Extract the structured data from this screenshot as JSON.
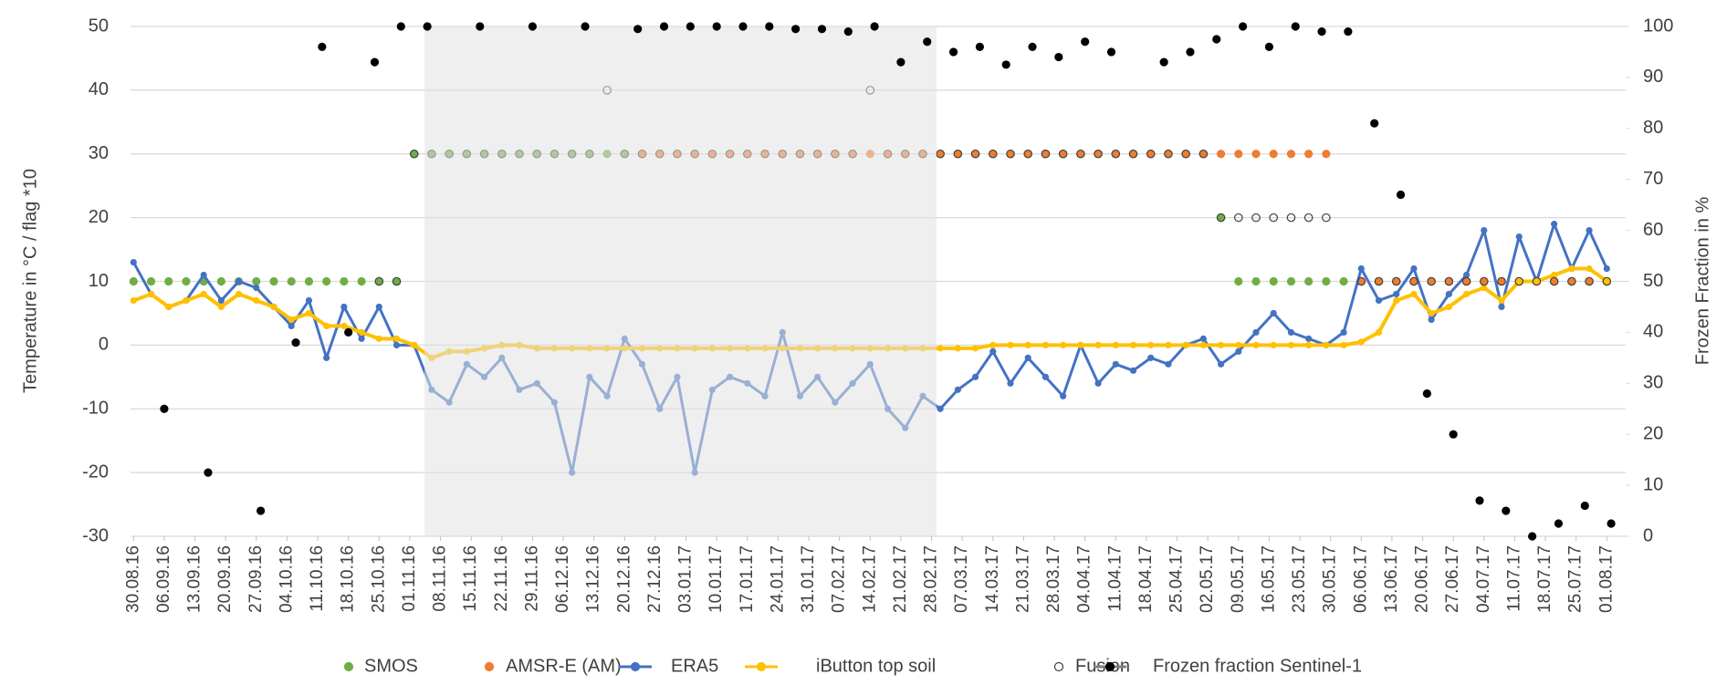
{
  "chart_data": {
    "type": "line",
    "y_label": "Temperature in °C  /  flag *10",
    "y2_label": "Frozen Fraction in %",
    "ylim": [
      -30,
      50
    ],
    "yticks": [
      -30,
      -20,
      -10,
      0,
      10,
      20,
      30,
      40,
      50
    ],
    "y2lim": [
      0,
      100
    ],
    "y2ticks": [
      0,
      10,
      20,
      30,
      40,
      50,
      60,
      70,
      80,
      90,
      100
    ],
    "grid": true,
    "legend": "bottom",
    "xticks": [
      "30.08.16",
      "06.09.16",
      "13.09.16",
      "20.09.16",
      "27.09.16",
      "04.10.16",
      "11.10.16",
      "18.10.16",
      "25.10.16",
      "01.11.16",
      "08.11.16",
      "15.11.16",
      "22.11.16",
      "29.11.16",
      "06.12.16",
      "13.12.16",
      "20.12.16",
      "27.12.16",
      "03.01.17",
      "10.01.17",
      "17.01.17",
      "24.01.17",
      "31.01.17",
      "07.02.17",
      "14.02.17",
      "21.02.17",
      "28.02.17",
      "07.03.17",
      "14.03.17",
      "21.03.17",
      "28.03.17",
      "04.04.17",
      "11.04.17",
      "18.04.17",
      "25.04.17",
      "02.05.17",
      "09.05.17",
      "16.05.17",
      "23.05.17",
      "30.05.17",
      "06.06.17",
      "13.06.17",
      "20.06.17",
      "27.06.17",
      "04.07.17",
      "11.07.17",
      "18.07.17",
      "25.07.17",
      "01.08.17"
    ],
    "x": [
      "30.08.16",
      "03.09.16",
      "07.09.16",
      "11.09.16",
      "15.09.16",
      "19.09.16",
      "23.09.16",
      "27.09.16",
      "01.10.16",
      "05.10.16",
      "09.10.16",
      "13.10.16",
      "17.10.16",
      "21.10.16",
      "25.10.16",
      "29.10.16",
      "02.11.16",
      "06.11.16",
      "10.11.16",
      "14.11.16",
      "18.11.16",
      "22.11.16",
      "26.11.16",
      "30.11.16",
      "04.12.16",
      "08.12.16",
      "12.12.16",
      "16.12.16",
      "20.12.16",
      "24.12.16",
      "28.12.16",
      "01.01.17",
      "05.01.17",
      "09.01.17",
      "13.01.17",
      "17.01.17",
      "21.01.17",
      "25.01.17",
      "29.01.17",
      "02.02.17",
      "06.02.17",
      "10.02.17",
      "14.02.17",
      "18.02.17",
      "22.02.17",
      "26.02.17",
      "02.03.17",
      "06.03.17",
      "10.03.17",
      "14.03.17",
      "18.03.17",
      "22.03.17",
      "26.03.17",
      "30.03.17",
      "03.04.17",
      "07.04.17",
      "11.04.17",
      "15.04.17",
      "19.04.17",
      "23.04.17",
      "27.04.17",
      "01.05.17",
      "05.05.17",
      "09.05.17",
      "13.05.17",
      "17.05.17",
      "21.05.17",
      "25.05.17",
      "29.05.17",
      "02.06.17",
      "06.06.17",
      "10.06.17",
      "14.06.17",
      "18.06.17",
      "22.06.17",
      "26.06.17",
      "30.06.17",
      "04.07.17",
      "08.07.17",
      "12.07.17",
      "16.07.17",
      "20.07.17",
      "24.07.17",
      "28.07.17",
      "01.08.17"
    ],
    "series": [
      {
        "name": "SMOS",
        "color": "#70ad47",
        "line": false,
        "values": [
          10,
          10,
          10,
          10,
          10,
          10,
          10,
          10,
          10,
          10,
          10,
          10,
          10,
          10,
          10,
          10,
          30,
          30,
          30,
          30,
          30,
          30,
          30,
          30,
          30,
          30,
          30,
          30,
          30,
          30,
          30,
          null,
          null,
          null,
          null,
          null,
          null,
          null,
          null,
          null,
          null,
          null,
          null,
          null,
          null,
          null,
          null,
          null,
          null,
          null,
          null,
          null,
          null,
          null,
          null,
          null,
          null,
          null,
          null,
          null,
          null,
          null,
          20,
          10,
          10,
          10,
          10,
          10,
          10,
          10,
          null,
          null,
          null,
          null,
          null,
          null,
          null,
          null,
          null,
          null,
          null,
          null,
          null,
          null,
          null
        ]
      },
      {
        "name": "AMSR-E (AM)",
        "color": "#ed7d31",
        "line": false,
        "values": [
          null,
          null,
          null,
          null,
          null,
          null,
          null,
          null,
          null,
          null,
          null,
          null,
          null,
          null,
          null,
          null,
          null,
          null,
          null,
          null,
          null,
          null,
          null,
          null,
          null,
          null,
          null,
          null,
          null,
          30,
          30,
          30,
          30,
          30,
          30,
          30,
          30,
          30,
          30,
          30,
          30,
          30,
          30,
          30,
          30,
          30,
          30,
          30,
          30,
          30,
          30,
          30,
          30,
          30,
          30,
          30,
          30,
          30,
          30,
          30,
          30,
          30,
          30,
          30,
          30,
          30,
          30,
          30,
          30,
          null,
          10,
          10,
          10,
          10,
          10,
          10,
          10,
          10,
          10,
          10,
          10,
          10,
          10,
          10,
          10
        ]
      },
      {
        "name": "ERA5",
        "color": "#4472c4",
        "line": true,
        "values": [
          13,
          8,
          6,
          7,
          11,
          7,
          10,
          9,
          6,
          3,
          7,
          -2,
          6,
          1,
          6,
          0,
          0,
          -7,
          -9,
          -3,
          -5,
          -2,
          -7,
          -6,
          -9,
          -20,
          -5,
          -8,
          1,
          -3,
          -10,
          -5,
          -20,
          -7,
          -5,
          -6,
          -8,
          2,
          -8,
          -5,
          -9,
          -6,
          -3,
          -10,
          -13,
          -8,
          -10,
          -7,
          -5,
          -1,
          -6,
          -2,
          -5,
          -8,
          0,
          -6,
          -3,
          -4,
          -2,
          -3,
          0,
          1,
          -3,
          -1,
          2,
          5,
          2,
          1,
          0,
          2,
          12,
          7,
          8,
          12,
          4,
          8,
          11,
          18,
          6,
          17,
          10,
          19,
          12,
          18,
          12
        ]
      },
      {
        "name": "iButton top soil",
        "color": "#ffc000",
        "line": true,
        "values": [
          7,
          8,
          6,
          7,
          8,
          6,
          8,
          7,
          6,
          4,
          5,
          3,
          3,
          2,
          1,
          1,
          0,
          -2,
          -1,
          -1,
          -0.5,
          0,
          0,
          -0.5,
          -0.5,
          -0.5,
          -0.5,
          -0.5,
          -0.5,
          -0.5,
          -0.5,
          -0.5,
          -0.5,
          -0.5,
          -0.5,
          -0.5,
          -0.5,
          -0.5,
          -0.5,
          -0.5,
          -0.5,
          -0.5,
          -0.5,
          -0.5,
          -0.5,
          -0.5,
          -0.5,
          -0.5,
          -0.5,
          0,
          0,
          0,
          0,
          0,
          0,
          0,
          0,
          0,
          0,
          0,
          0,
          0,
          0,
          0,
          0,
          0,
          0,
          0,
          0,
          0,
          0.5,
          2,
          7,
          8,
          5,
          6,
          8,
          9,
          7,
          10,
          10,
          11,
          12,
          12,
          10
        ]
      },
      {
        "name": "Fusion",
        "color": "#404040",
        "line": false,
        "hollow": true,
        "values": [
          null,
          null,
          null,
          null,
          null,
          null,
          null,
          null,
          null,
          null,
          null,
          null,
          null,
          null,
          10,
          10,
          30,
          30,
          30,
          30,
          30,
          30,
          30,
          30,
          30,
          30,
          30,
          40,
          30,
          30,
          30,
          30,
          30,
          30,
          30,
          30,
          30,
          30,
          30,
          30,
          30,
          30,
          40,
          30,
          30,
          30,
          30,
          30,
          30,
          30,
          30,
          30,
          30,
          30,
          30,
          30,
          30,
          30,
          30,
          30,
          30,
          30,
          20,
          20,
          20,
          20,
          20,
          20,
          20,
          null,
          10,
          10,
          10,
          10,
          10,
          10,
          10,
          10,
          10,
          10,
          10,
          10,
          10,
          10,
          10
        ]
      },
      {
        "name": "Frozen fraction Sentinel-1",
        "color": "#000000",
        "line": false,
        "legend_line": "#808080",
        "axis": "y2",
        "x": [
          "06.09.16",
          "16.09.16",
          "28.09.16",
          "06.10.16",
          "12.10.16",
          "18.10.16",
          "24.10.16",
          "30.10.16",
          "05.11.16",
          "17.11.16",
          "29.11.16",
          "11.12.16",
          "23.12.16",
          "29.12.16",
          "04.01.17",
          "10.01.17",
          "16.01.17",
          "22.01.17",
          "28.01.17",
          "03.02.17",
          "09.02.17",
          "15.02.17",
          "21.02.17",
          "27.02.17",
          "05.03.17",
          "11.03.17",
          "17.03.17",
          "23.03.17",
          "29.03.17",
          "04.04.17",
          "10.04.17",
          "22.04.17",
          "28.04.17",
          "04.05.17",
          "10.05.17",
          "16.05.17",
          "22.05.17",
          "28.05.17",
          "03.06.17",
          "09.06.17",
          "15.06.17",
          "21.06.17",
          "27.06.17",
          "03.07.17",
          "09.07.17",
          "15.07.17",
          "21.07.17",
          "27.07.17",
          "02.08.17"
        ],
        "values": [
          25,
          12.5,
          5,
          38,
          96,
          40,
          93,
          100,
          100,
          100,
          100,
          100,
          99.5,
          100,
          100,
          100,
          100,
          100,
          99.5,
          99.5,
          99,
          100,
          93,
          97,
          95,
          96,
          92.5,
          96,
          94,
          97,
          95,
          93,
          95,
          97.5,
          100,
          96,
          100,
          99,
          99,
          81,
          67,
          28,
          20,
          7,
          5,
          0,
          2.5,
          6,
          2.5
        ]
      }
    ]
  }
}
